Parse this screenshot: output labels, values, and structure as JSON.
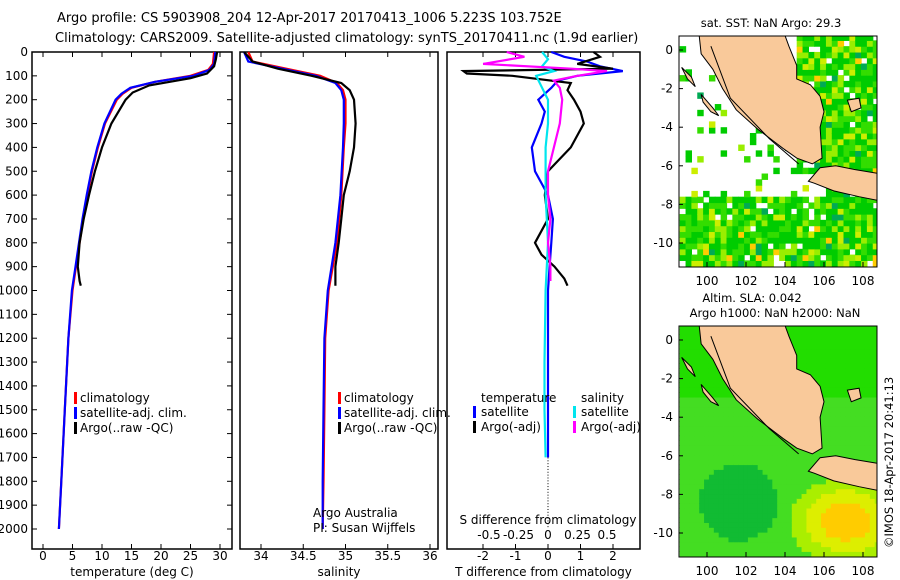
{
  "title": {
    "line1": "Argo profile: CS 5903908_204 12-Apr-2017 20170413_1006 5.223S 103.752E",
    "line2": "Climatology: CARS2009. Satellite-adjusted climatology: synTS_20170411.nc (1.9d earlier)"
  },
  "credits": {
    "org": "Argo Australia",
    "pi": "PI: Susan Wijffels",
    "copyright": "©IMOS 18-Apr-2017 20:41:13"
  },
  "colors": {
    "climatology": "#ff0000",
    "satellite": "#0000ff",
    "argo": "#000000",
    "sal_satellite": "#00e5ee",
    "sal_argo": "#ff00ff"
  },
  "chart_data": [
    {
      "type": "line",
      "name": "temperature",
      "xlabel": "temperature (deg C)",
      "ylabel": "depth",
      "xlim": [
        -2,
        31.5
      ],
      "ylim": [
        2100,
        0
      ],
      "xticks": [
        "0",
        "5",
        "10",
        "15",
        "20",
        "25",
        "30"
      ],
      "yticks": [
        "0",
        "100",
        "200",
        "300",
        "400",
        "500",
        "600",
        "700",
        "800",
        "900",
        "1000",
        "1100",
        "1200",
        "1300",
        "1400",
        "1500",
        "1600",
        "1700",
        "1800",
        "1900",
        "2000"
      ],
      "legend": [
        "climatology",
        "satellite-adj. clim.",
        "Argo(..raw -QC)"
      ],
      "series": [
        {
          "name": "climatology",
          "color": "#ff0000",
          "depth": [
            0,
            50,
            75,
            100,
            125,
            150,
            175,
            200,
            300,
            400,
            500,
            600,
            700,
            800,
            900,
            1000,
            1200,
            1500,
            1800,
            2000
          ],
          "values": [
            29,
            28.8,
            28,
            25,
            19,
            15,
            13.5,
            12.5,
            10.5,
            9.3,
            8.3,
            7.5,
            6.8,
            6.2,
            5.6,
            5,
            4.3,
            3.7,
            3.1,
            2.7
          ]
        },
        {
          "name": "satellite-adj. clim.",
          "color": "#0000ff",
          "depth": [
            0,
            50,
            75,
            100,
            125,
            150,
            175,
            200,
            300,
            400,
            500,
            600,
            700,
            800,
            900,
            1000,
            1200,
            1500,
            1800,
            2000
          ],
          "values": [
            29.2,
            29,
            28.2,
            25.5,
            19,
            14.8,
            13.3,
            12.3,
            10.4,
            9.2,
            8.2,
            7.4,
            6.7,
            6.1,
            5.5,
            4.9,
            4.3,
            3.7,
            3.1,
            2.7
          ]
        },
        {
          "name": "Argo(..raw -QC)",
          "color": "#000000",
          "depth": [
            0,
            30,
            60,
            90,
            110,
            140,
            170,
            200,
            300,
            400,
            500,
            600,
            700,
            800,
            900,
            960,
            980
          ],
          "values": [
            29.5,
            29.3,
            29,
            27.8,
            25,
            18,
            15.2,
            14,
            11.6,
            10,
            8.8,
            7.8,
            6.9,
            6.2,
            5.9,
            6.2,
            6.4
          ]
        }
      ]
    },
    {
      "type": "line",
      "name": "salinity",
      "xlabel": "salinity",
      "ylabel": "depth",
      "xlim": [
        33.8,
        36.1
      ],
      "ylim": [
        2100,
        0
      ],
      "xticks": [
        "34",
        "34.5",
        "35",
        "35.5",
        "36"
      ],
      "legend": [
        "climatology",
        "satellite-adj. clim.",
        "Argo(..raw -QC)"
      ],
      "series": [
        {
          "name": "climatology",
          "color": "#ff0000",
          "depth": [
            0,
            40,
            70,
            100,
            130,
            160,
            200,
            300,
            400,
            600,
            800,
            1000,
            1200,
            1500,
            1800,
            2000
          ],
          "values": [
            33.85,
            33.9,
            34.3,
            34.7,
            34.9,
            34.97,
            35.0,
            35.0,
            34.98,
            34.95,
            34.9,
            34.8,
            34.76,
            34.75,
            34.74,
            34.73
          ]
        },
        {
          "name": "satellite-adj. clim.",
          "color": "#0000ff",
          "depth": [
            0,
            40,
            70,
            100,
            130,
            160,
            200,
            300,
            400,
            600,
            800,
            1000,
            1200,
            1500,
            1800,
            2000
          ],
          "values": [
            33.8,
            33.85,
            34.25,
            34.65,
            34.88,
            34.95,
            34.98,
            34.98,
            34.97,
            34.94,
            34.88,
            34.79,
            34.75,
            34.74,
            34.73,
            34.73
          ]
        },
        {
          "name": "Argo(..raw -QC)",
          "color": "#000000",
          "depth": [
            0,
            40,
            70,
            100,
            130,
            160,
            200,
            300,
            400,
            500,
            600,
            700,
            800,
            900,
            980
          ],
          "values": [
            33.8,
            33.9,
            34.2,
            34.6,
            34.95,
            35.05,
            35.1,
            35.12,
            35.1,
            35.05,
            34.98,
            34.95,
            34.92,
            34.88,
            34.88
          ]
        }
      ]
    },
    {
      "type": "line",
      "name": "difference",
      "xlabel": "T difference from climatology",
      "xlabel2": "S difference from climatology",
      "xlim": [
        -2.6,
        2.9
      ],
      "ylim": [
        2100,
        0
      ],
      "xticks": [
        "-2",
        "-1",
        "0",
        "1",
        "2"
      ],
      "xticks2": [
        "-0.5",
        "-0.25",
        "0",
        "0.25",
        "0.5"
      ],
      "legend": {
        "temperature": "temperature",
        "salinity": "salinity",
        "t_sat": "satellite",
        "t_argo": "Argo(-adj)",
        "s_sat": "satellite",
        "s_argo": "Argo(-adj)"
      },
      "series": [
        {
          "name": "T satellite",
          "color": "#0000ff",
          "depth": [
            0,
            20,
            40,
            60,
            80,
            100,
            120,
            150,
            200,
            250,
            300,
            400,
            500,
            600,
            700,
            800,
            900,
            1000,
            1300,
            1700
          ],
          "values": [
            0.1,
            0.5,
            1.2,
            1.6,
            2.3,
            0.9,
            0.3,
            0.1,
            -0.3,
            -0.1,
            -0.2,
            -0.5,
            -0.4,
            0.0,
            0.15,
            0.1,
            0.05,
            0.0,
            0.0,
            0.0
          ]
        },
        {
          "name": "T Argo(-adj)",
          "color": "#000000",
          "depth": [
            0,
            20,
            50,
            70,
            80,
            90,
            100,
            130,
            160,
            200,
            250,
            300,
            400,
            500,
            600,
            700,
            800,
            850,
            900,
            950,
            980
          ],
          "values": [
            1.4,
            1.6,
            0.9,
            2.0,
            -2.6,
            -2.5,
            -1.1,
            0.7,
            0.6,
            0.8,
            1.0,
            1.1,
            0.7,
            0.0,
            -0.1,
            0.0,
            -0.4,
            -0.2,
            0.2,
            0.5,
            0.6
          ]
        },
        {
          "name": "S satellite",
          "color": "#00e5ee",
          "depth": [
            0,
            30,
            60,
            80,
            100,
            150,
            200,
            300,
            400,
            600,
            800,
            1000,
            1300,
            1500,
            1700
          ],
          "values": [
            -0.05,
            0.0,
            -0.05,
            0.05,
            -0.1,
            -0.05,
            0.0,
            0.0,
            -0.02,
            -0.02,
            0.0,
            -0.02,
            -0.03,
            -0.03,
            -0.02
          ]
        },
        {
          "name": "S Argo(-adj)",
          "color": "#ff00ff",
          "depth": [
            0,
            20,
            50,
            70,
            80,
            100,
            120,
            150,
            200,
            300,
            400,
            500,
            600,
            700,
            800,
            900,
            960
          ],
          "values": [
            -0.35,
            -0.2,
            -0.55,
            0.2,
            0.5,
            0.25,
            0.05,
            0.1,
            0.12,
            0.1,
            0.05,
            0.0,
            0.0,
            0.02,
            0.0,
            0.02,
            0.02
          ]
        }
      ]
    }
  ],
  "maps": {
    "top": {
      "title": "sat. SST: NaN Argo: 29.3",
      "xticks": [
        "100",
        "102",
        "104",
        "106",
        "108"
      ],
      "yticks": [
        "0",
        "-2",
        "-4",
        "-6",
        "-8",
        "-10"
      ],
      "lon": [
        98.6,
        108.8
      ],
      "lat": [
        -11.2,
        0.75
      ]
    },
    "bottom": {
      "title1": "Altim. SLA: 0.042",
      "title2": "Argo h1000: NaN h2000: NaN",
      "xticks": [
        "100",
        "102",
        "104",
        "106",
        "108"
      ],
      "yticks": [
        "0",
        "-2",
        "-4",
        "-6",
        "-8",
        "-10"
      ],
      "lon": [
        98.6,
        108.8
      ],
      "lat": [
        -11.2,
        0.75
      ]
    }
  }
}
